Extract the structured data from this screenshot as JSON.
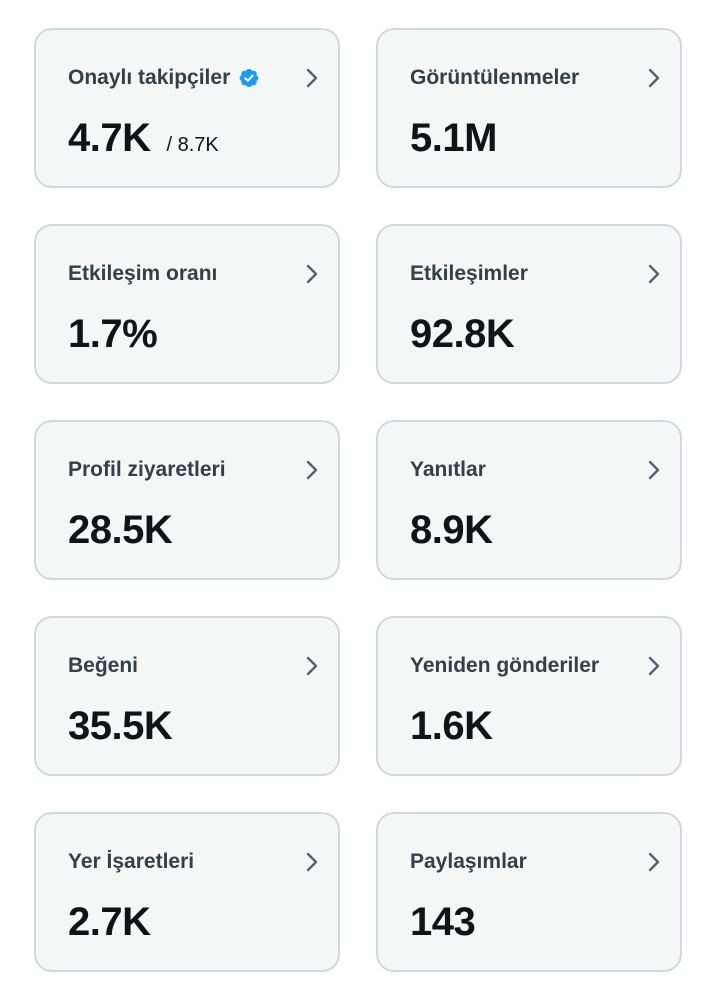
{
  "cards": [
    {
      "label": "Onaylı takipçiler",
      "value": "4.7K",
      "total": "/ 8.7K",
      "verified": true
    },
    {
      "label": "Görüntülenmeler",
      "value": "5.1M"
    },
    {
      "label": "Etkileşim oranı",
      "value": "1.7%"
    },
    {
      "label": "Etkileşimler",
      "value": "92.8K"
    },
    {
      "label": "Profil ziyaretleri",
      "value": "28.5K"
    },
    {
      "label": "Yanıtlar",
      "value": "8.9K"
    },
    {
      "label": "Beğeni",
      "value": "35.5K"
    },
    {
      "label": "Yeniden gönderiler",
      "value": "1.6K"
    },
    {
      "label": "Yer İşaretleri",
      "value": "2.7K"
    },
    {
      "label": "Paylaşımlar",
      "value": "143"
    }
  ],
  "colors": {
    "card_background": "#f5f6f6",
    "card_border": "#cfd9de",
    "verified_badge": "#1d9bf0",
    "chevron": "#536471"
  },
  "icons": {
    "chevron": "chevron-right-icon",
    "verified": "verified-badge-icon"
  }
}
